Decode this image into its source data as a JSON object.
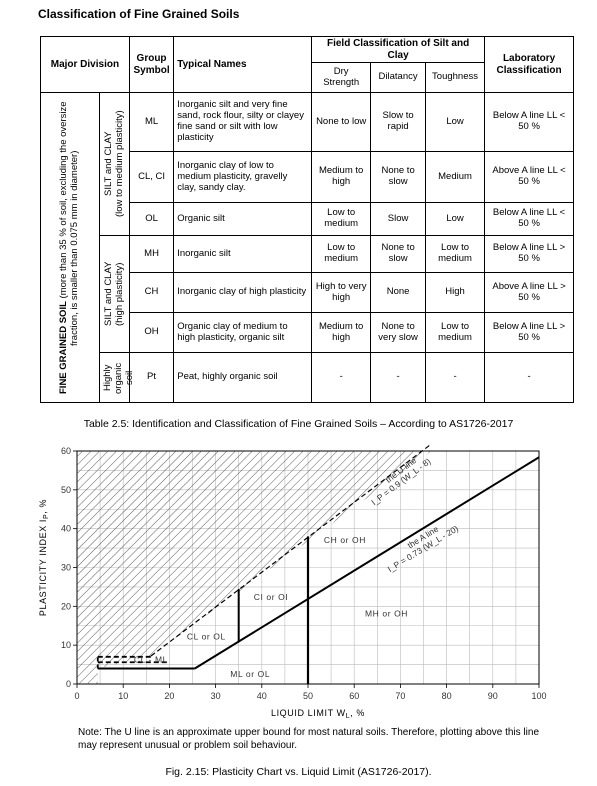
{
  "heading": "Classification of Fine Grained Soils",
  "table": {
    "headers": {
      "major_division": "Major Division",
      "group_symbol": "Group Symbol",
      "typical_names": "Typical Names",
      "field_classification": "Field Classification of Silt and Clay",
      "dry_strength": "Dry Strength",
      "dilatancy": "Dilatancy",
      "toughness": "Toughness",
      "laboratory": "Laboratory Classification"
    },
    "fine_grained_label": "FINE GRAINED SOIL",
    "fine_grained_note": "(more than 35 % of soil, excluding the oversize fraction, is smaller than 0.075 mm in diameter)",
    "group_low": "SILT and CLAY",
    "group_low_note": "(low to medium plasticity)",
    "group_high": "SILT and CLAY",
    "group_high_note": "(high plasticity)",
    "group_organic": "Highly organic soil",
    "rows": [
      {
        "symbol": "ML",
        "name": "Inorganic silt and very fine sand, rock flour, silty or clayey fine sand or silt with low plasticity",
        "dry": "None to low",
        "dil": "Slow to rapid",
        "tough": "Low",
        "lab": "Below A line LL < 50 %"
      },
      {
        "symbol": "CL, CI",
        "name": "Inorganic clay of low to medium plasticity, gravelly clay, sandy clay.",
        "dry": "Medium to high",
        "dil": "None to slow",
        "tough": "Medium",
        "lab": "Above A line LL < 50 %"
      },
      {
        "symbol": "OL",
        "name": "Organic silt",
        "dry": "Low to medium",
        "dil": "Slow",
        "tough": "Low",
        "lab": "Below A line LL < 50 %"
      },
      {
        "symbol": "MH",
        "name": "Inorganic silt",
        "dry": "Low to medium",
        "dil": "None to slow",
        "tough": "Low to medium",
        "lab": "Below A line LL > 50 %"
      },
      {
        "symbol": "CH",
        "name": "Inorganic clay of high plasticity",
        "dry": "High to very high",
        "dil": "None",
        "tough": "High",
        "lab": "Above A line LL > 50 %"
      },
      {
        "symbol": "OH",
        "name": "Organic clay of medium to high plasticity, organic silt",
        "dry": "Medium to high",
        "dil": "None to very slow",
        "tough": "Low to medium",
        "lab": "Below A line LL > 50 %"
      },
      {
        "symbol": "Pt",
        "name": "Peat, highly organic soil",
        "dry": "-",
        "dil": "-",
        "tough": "-",
        "lab": "-"
      }
    ]
  },
  "table_caption": "Table 2.5: Identification and Classification of Fine Grained Soils – According to AS1726-2017",
  "chart_data": {
    "type": "line",
    "xlabel": "LIQUID LIMIT W",
    "xlabel_sub": "L",
    "xlabel_unit": ", %",
    "ylabel": "PLASTICITY INDEX I",
    "ylabel_sub": "P",
    "ylabel_unit": ", %",
    "xlim": [
      0,
      100
    ],
    "ylim": [
      0,
      60
    ],
    "x_ticks": [
      "0",
      "10",
      "20",
      "30",
      "40",
      "50",
      "60",
      "70",
      "80",
      "90",
      "100"
    ],
    "y_ticks": [
      "0",
      "10",
      "20",
      "30",
      "40",
      "50",
      "60"
    ],
    "grid": true,
    "series": [
      {
        "name": "the U line",
        "equation": "I_P = 0.9 (W_L - 8)",
        "x": [
          16,
          76.7
        ],
        "y": [
          7.2,
          61.8
        ]
      },
      {
        "name": "the A line",
        "equation": "I_P = 0.73 (W_L - 20)",
        "x": [
          25.5,
          100
        ],
        "y": [
          4,
          58.4
        ]
      }
    ],
    "zone_labels": [
      "CH or OH",
      "CI or OI",
      "CL or OL",
      "CL - ML",
      "ML or OL",
      "MH or OH"
    ],
    "u_line_label": "the U line",
    "u_line_eq": "I_P = 0.9 (W_L - 8)",
    "a_line_label": "the A line",
    "a_line_eq": "I_P = 0.73 (W_L - 20)"
  },
  "note": "Note: The U line is an approximate upper bound for most natural soils. Therefore, plotting above this line may represent unusual or problem soil behaviour.",
  "figure_caption": "Fig. 2.15: Plasticity Chart vs. Liquid Limit (AS1726-2017)."
}
